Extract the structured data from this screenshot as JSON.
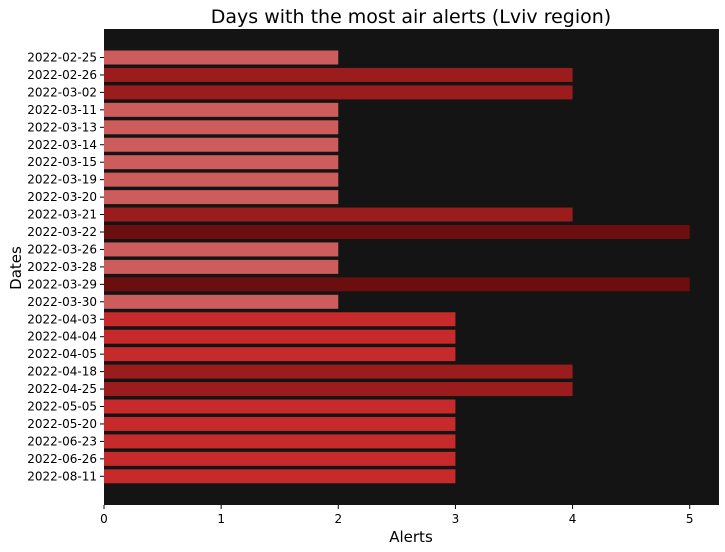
{
  "chart_data": {
    "type": "bar",
    "orientation": "horizontal",
    "title": "Days with the most air alerts (Lviv region)",
    "xlabel": "Alerts",
    "ylabel": "Dates",
    "xlim": [
      0,
      5.25
    ],
    "xticks": [
      0,
      1,
      2,
      3,
      4,
      5
    ],
    "grid": false,
    "background": "#141414",
    "color_by_value": {
      "2": "#cd5c5c",
      "3": "#c62a2a",
      "4": "#9b1c1c",
      "5": "#6b0e0e"
    },
    "categories": [
      "2022-02-25",
      "2022-02-26",
      "2022-03-02",
      "2022-03-11",
      "2022-03-13",
      "2022-03-14",
      "2022-03-15",
      "2022-03-19",
      "2022-03-20",
      "2022-03-21",
      "2022-03-22",
      "2022-03-26",
      "2022-03-28",
      "2022-03-29",
      "2022-03-30",
      "2022-04-03",
      "2022-04-04",
      "2022-04-05",
      "2022-04-18",
      "2022-04-25",
      "2022-05-05",
      "2022-05-20",
      "2022-06-23",
      "2022-06-26",
      "2022-08-11"
    ],
    "values": [
      2,
      4,
      4,
      2,
      2,
      2,
      2,
      2,
      2,
      4,
      5,
      2,
      2,
      5,
      2,
      3,
      3,
      3,
      4,
      4,
      3,
      3,
      3,
      3,
      3
    ]
  }
}
